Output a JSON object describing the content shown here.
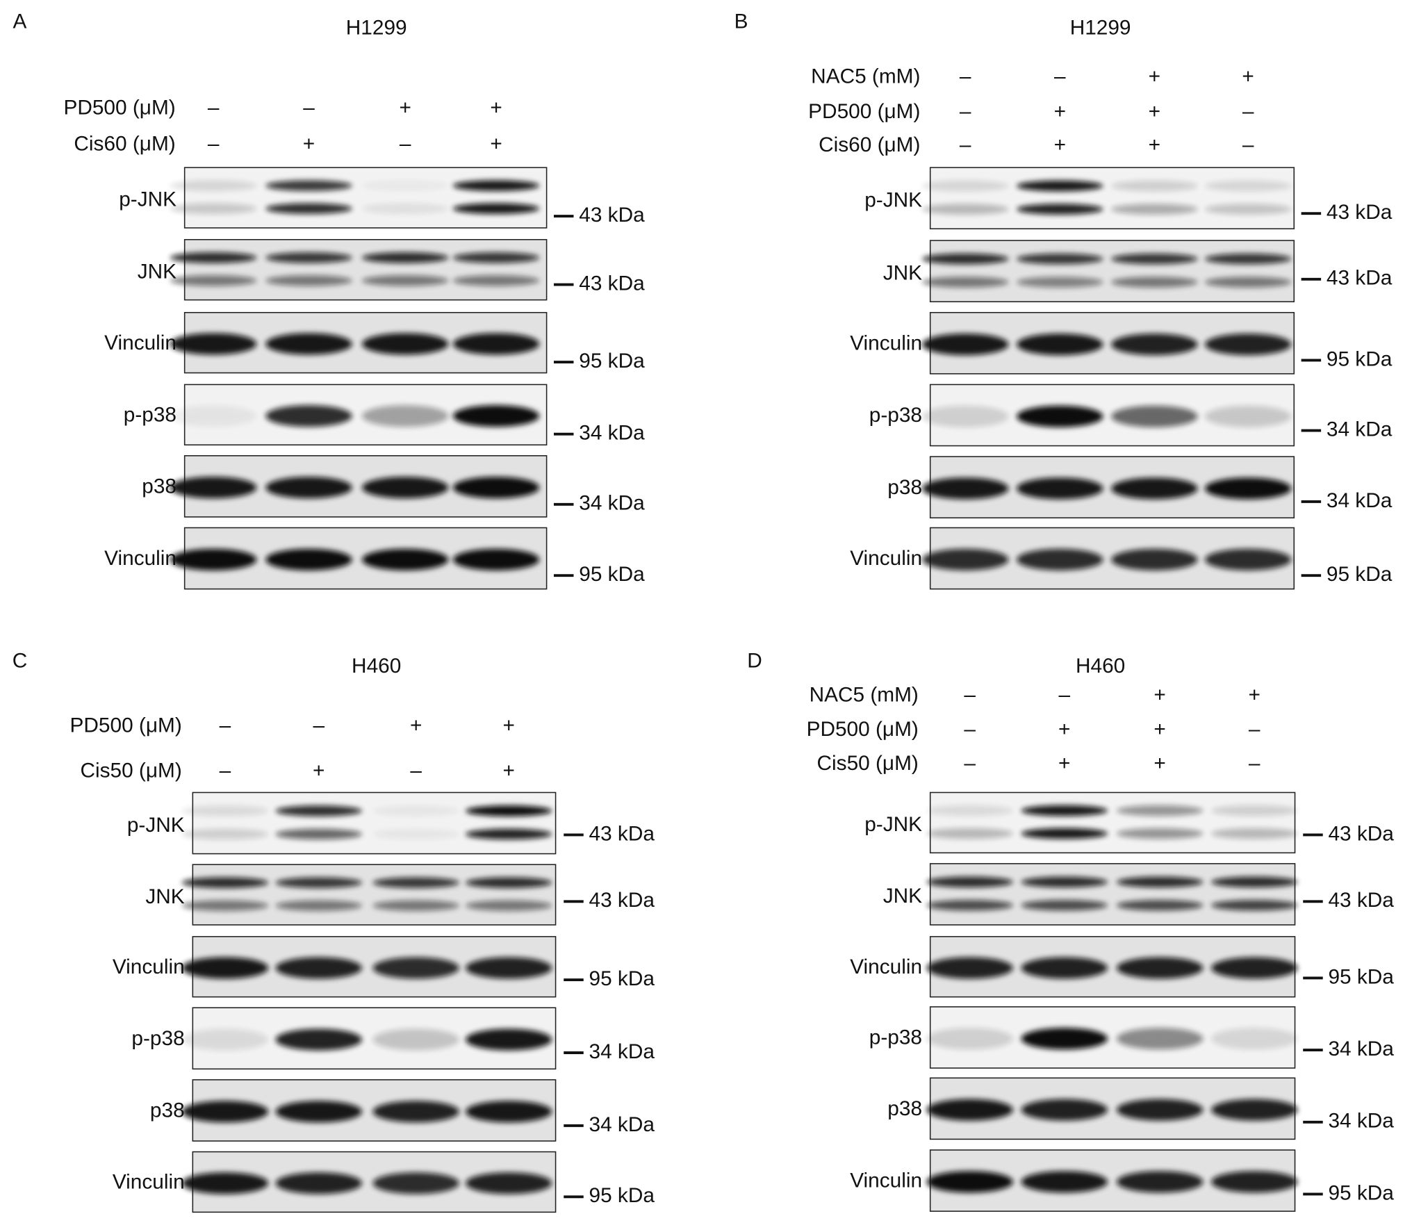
{
  "panels": [
    {
      "letter": "A",
      "title": "H1299",
      "treatments": [
        {
          "label": "PD500 (μM)",
          "signs": [
            "–",
            "–",
            "+",
            "+"
          ]
        },
        {
          "label": "Cis60 (μM)",
          "signs": [
            "–",
            "+",
            "–",
            "+"
          ]
        }
      ],
      "blots": [
        {
          "label": "p-JNK",
          "kda": "43 kDa"
        },
        {
          "label": "JNK",
          "kda": "43 kDa"
        },
        {
          "label": "Vinculin",
          "kda": "95 kDa"
        },
        {
          "label": "p-p38",
          "kda": "34 kDa"
        },
        {
          "label": "p38",
          "kda": "34 kDa"
        },
        {
          "label": "Vinculin",
          "kda": "95 kDa"
        }
      ]
    },
    {
      "letter": "B",
      "title": "H1299",
      "treatments": [
        {
          "label": "NAC5 (mM)",
          "signs": [
            "–",
            "–",
            "+",
            "+"
          ]
        },
        {
          "label": "PD500 (μM)",
          "signs": [
            "–",
            "+",
            "+",
            "–"
          ]
        },
        {
          "label": "Cis60 (μM)",
          "signs": [
            "–",
            "+",
            "+",
            "–"
          ]
        }
      ],
      "blots": [
        {
          "label": "p-JNK",
          "kda": "43 kDa"
        },
        {
          "label": "JNK",
          "kda": "43 kDa"
        },
        {
          "label": "Vinculin",
          "kda": "95 kDa"
        },
        {
          "label": "p-p38",
          "kda": "34 kDa"
        },
        {
          "label": "p38",
          "kda": "34 kDa"
        },
        {
          "label": "Vinculin",
          "kda": "95 kDa"
        }
      ]
    },
    {
      "letter": "C",
      "title": "H460",
      "treatments": [
        {
          "label": "PD500 (μM)",
          "signs": [
            "–",
            "–",
            "+",
            "+"
          ]
        },
        {
          "label": "Cis50 (μM)",
          "signs": [
            "–",
            "+",
            "–",
            "+"
          ]
        }
      ],
      "blots": [
        {
          "label": "p-JNK",
          "kda": "43 kDa"
        },
        {
          "label": "JNK",
          "kda": "43 kDa"
        },
        {
          "label": "Vinculin",
          "kda": "95 kDa"
        },
        {
          "label": "p-p38",
          "kda": "34 kDa"
        },
        {
          "label": "p38",
          "kda": "34 kDa"
        },
        {
          "label": "Vinculin",
          "kda": "95 kDa"
        }
      ]
    },
    {
      "letter": "D",
      "title": "H460",
      "treatments": [
        {
          "label": "NAC5 (mM)",
          "signs": [
            "–",
            "–",
            "+",
            "+"
          ]
        },
        {
          "label": "PD500 (μM)",
          "signs": [
            "–",
            "+",
            "+",
            "–"
          ]
        },
        {
          "label": "Cis50 (μM)",
          "signs": [
            "–",
            "+",
            "+",
            "–"
          ]
        }
      ],
      "blots": [
        {
          "label": "p-JNK",
          "kda": "43 kDa"
        },
        {
          "label": "JNK",
          "kda": "43 kDa"
        },
        {
          "label": "Vinculin",
          "kda": "95 kDa"
        },
        {
          "label": "p-p38",
          "kda": "34 kDa"
        },
        {
          "label": "p38",
          "kda": "34 kDa"
        },
        {
          "label": "Vinculin",
          "kda": "95 kDa"
        }
      ]
    }
  ]
}
